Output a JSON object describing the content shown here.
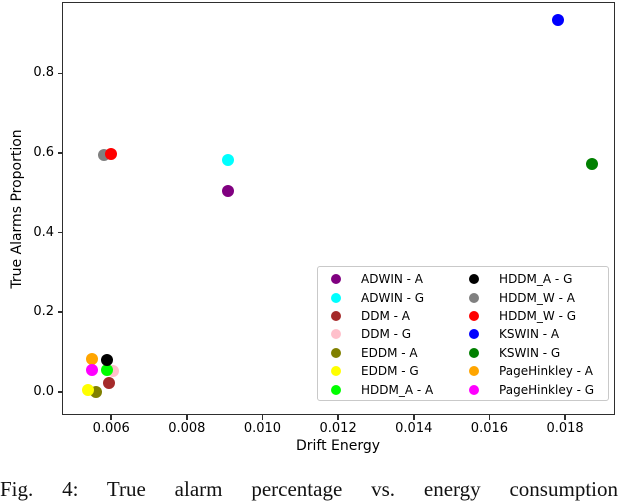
{
  "figure": {
    "xlabel": "Drift Energy",
    "ylabel": "True Alarms Proportion",
    "caption": "Fig. 4: True alarm percentage vs. energy consumption"
  },
  "chart_data": {
    "type": "scatter",
    "title": "",
    "xlabel": "Drift Energy",
    "ylabel": "True Alarms Proportion",
    "xlim": [
      0.0047,
      0.01932
    ],
    "ylim": [
      -0.058,
      0.979
    ],
    "xticks": [
      "0.006",
      "0.008",
      "0.010",
      "0.012",
      "0.014",
      "0.016",
      "0.018"
    ],
    "yticks": [
      "0.0",
      "0.2",
      "0.4",
      "0.6",
      "0.8"
    ],
    "grid": false,
    "legend_position": "lower-right-inside",
    "legend_columns": 2,
    "series": [
      {
        "name": "ADWIN - A",
        "color": "#800080",
        "x": 0.0091,
        "y": 0.505
      },
      {
        "name": "ADWIN - G",
        "color": "#00ffff",
        "x": 0.0091,
        "y": 0.583
      },
      {
        "name": "DDM - A",
        "color": "#a52a2a",
        "x": 0.00595,
        "y": 0.022
      },
      {
        "name": "DDM - G",
        "color": "#ffc0cb",
        "x": 0.00605,
        "y": 0.053
      },
      {
        "name": "EDDM - A",
        "color": "#808000",
        "x": 0.0056,
        "y": 0.0
      },
      {
        "name": "EDDM - G",
        "color": "#ffff00",
        "x": 0.0054,
        "y": 0.005
      },
      {
        "name": "HDDM_A - A",
        "color": "#00ff00",
        "x": 0.0059,
        "y": 0.054
      },
      {
        "name": "HDDM_A - G",
        "color": "#000000",
        "x": 0.0059,
        "y": 0.081
      },
      {
        "name": "HDDM_W - A",
        "color": "#808080",
        "x": 0.0058,
        "y": 0.594
      },
      {
        "name": "HDDM_W - G",
        "color": "#ff0000",
        "x": 0.006,
        "y": 0.598
      },
      {
        "name": "KSWIN - A",
        "color": "#0000ff",
        "x": 0.0178,
        "y": 0.933
      },
      {
        "name": "KSWIN - G",
        "color": "#008000",
        "x": 0.0187,
        "y": 0.571
      },
      {
        "name": "PageHinkley - A",
        "color": "#ffa500",
        "x": 0.0055,
        "y": 0.082
      },
      {
        "name": "PageHinkley - G",
        "color": "#ff00ff",
        "x": 0.0055,
        "y": 0.055
      }
    ]
  }
}
